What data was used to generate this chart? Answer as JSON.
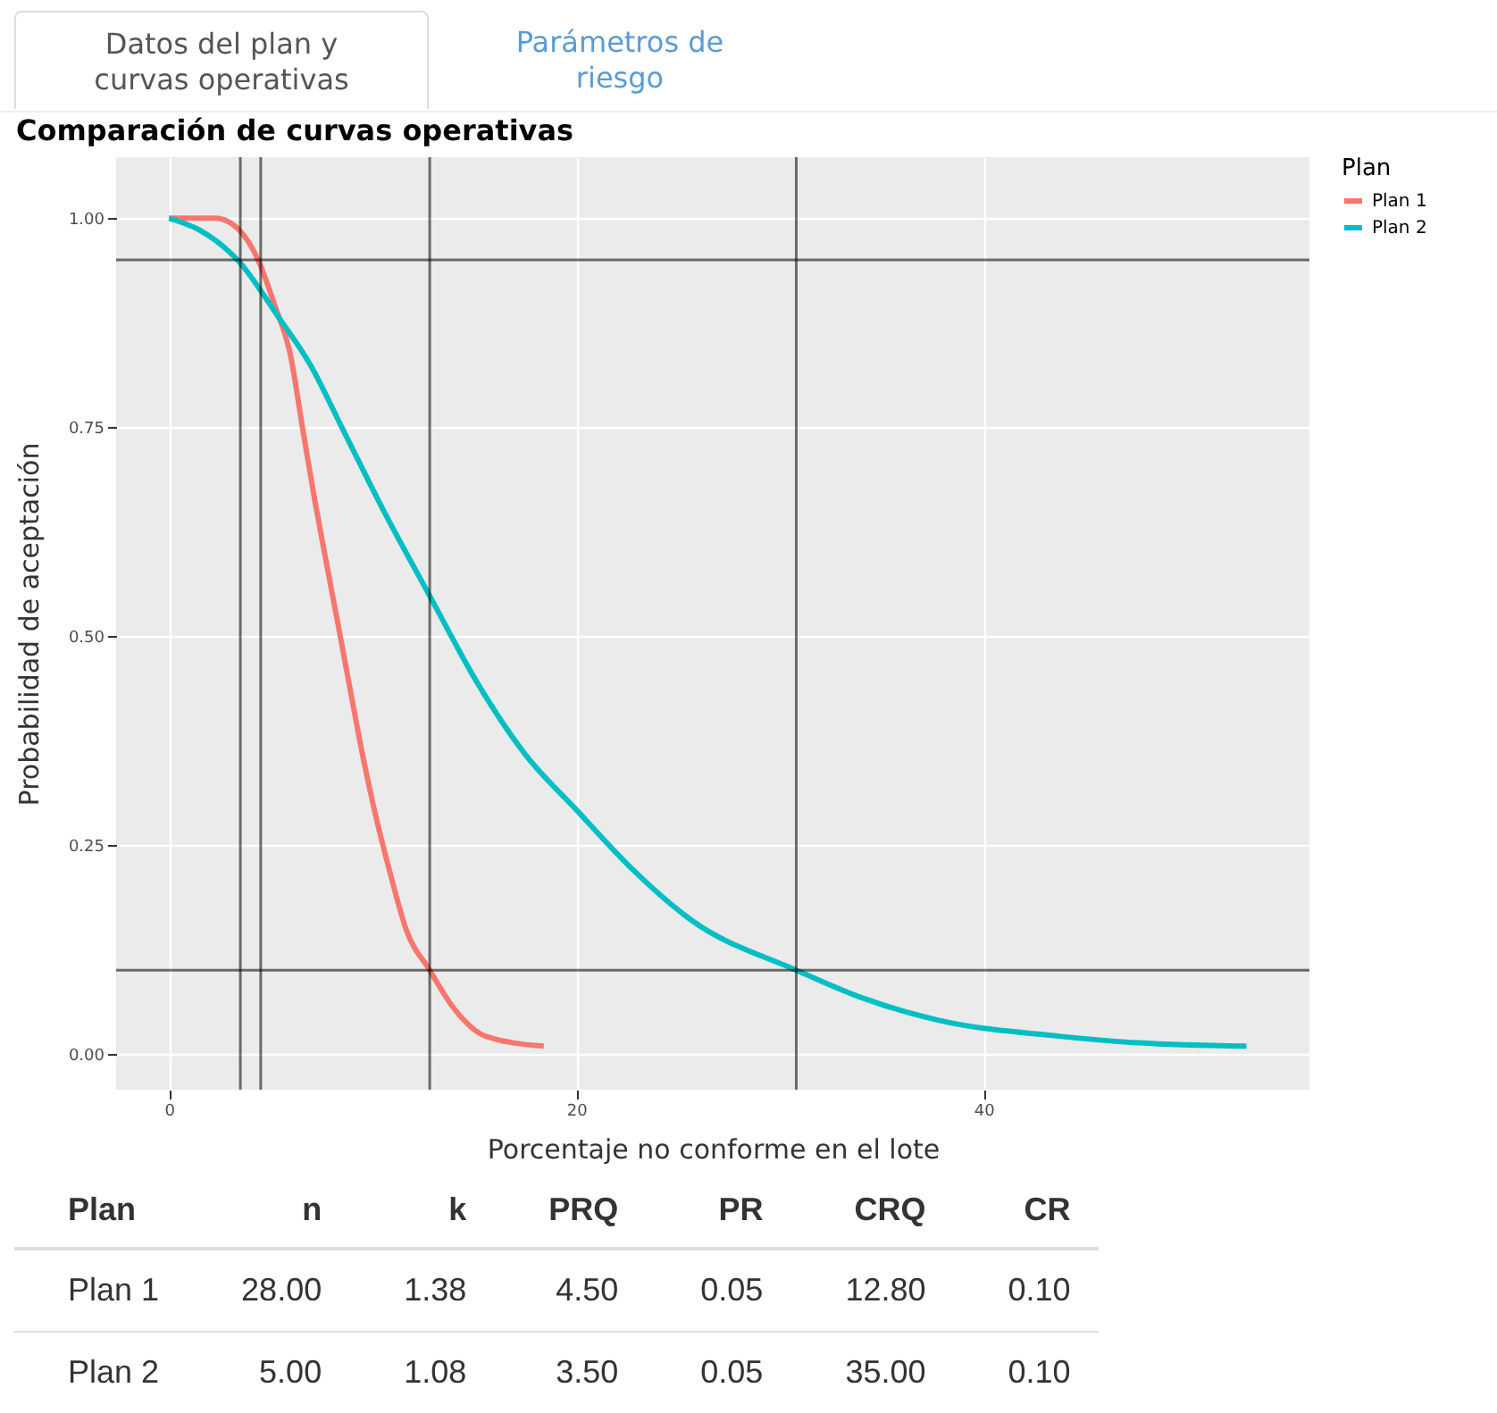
{
  "chart_data": {
    "type": "line",
    "title": "Comparación de curvas operativas",
    "xlabel": "Porcentaje no conforme en el lote",
    "ylabel": "Probabilidad de aceptación",
    "legend_title": "Plan",
    "legend": "right",
    "grid": true,
    "xlim": [
      -2.6,
      56
    ],
    "xticks": [
      0,
      20,
      40
    ],
    "ylim": [
      -0.043,
      1.073
    ],
    "yticks": [
      {
        "value": 0,
        "label": "0.00"
      },
      {
        "value": 0.25,
        "label": "0.25"
      },
      {
        "value": 0.5,
        "label": "0.50"
      },
      {
        "value": 0.75,
        "label": "0.75"
      },
      {
        "value": 1,
        "label": "1.00"
      }
    ],
    "series": [
      {
        "name": "Plan 1",
        "color": "#f8766d",
        "x": [
          0,
          2.27,
          3.44,
          4.41,
          5.2,
          5.98,
          6.56,
          7.15,
          7.73,
          8.32,
          8.91,
          9.5,
          10.08,
          10.86,
          11.64,
          12.8,
          14,
          15.55,
          18.4
        ],
        "values": [
          1,
          1,
          0.986,
          0.948,
          0.895,
          0.834,
          0.748,
          0.663,
          0.587,
          0.511,
          0.434,
          0.358,
          0.292,
          0.216,
          0.149,
          0.1,
          0.054,
          0.021,
          0.009
        ]
      },
      {
        "name": "Plan 2",
        "color": "#00bfc4",
        "x": [
          0,
          1.48,
          3.44,
          5.39,
          6.95,
          8.52,
          10.47,
          12.8,
          15.16,
          17.5,
          20,
          22.58,
          25.7,
          30.8,
          33.9,
          37.8,
          43.7,
          47.6,
          52.9
        ],
        "values": [
          1,
          0.986,
          0.948,
          0.881,
          0.824,
          0.748,
          0.653,
          0.548,
          0.443,
          0.358,
          0.292,
          0.225,
          0.159,
          0.1,
          0.068,
          0.04,
          0.021,
          0.013,
          0.009
        ]
      }
    ],
    "ref_lines": [
      {
        "axis": "x",
        "value": 3.5
      },
      {
        "axis": "x",
        "value": 4.5
      },
      {
        "axis": "x",
        "value": 12.8
      },
      {
        "axis": "x",
        "value": 30.8
      },
      {
        "axis": "y",
        "value": 0.95
      },
      {
        "axis": "y",
        "value": 0.1
      }
    ],
    "annotations": [
      "Datos del plan y curvas operativas",
      "Parámetros de riesgo",
      "Plan",
      "n",
      "k",
      "PRQ",
      "PR",
      "CRQ",
      "CR",
      "Plan 1",
      "28.00",
      "1.38",
      "4.50",
      "0.05",
      "12.80",
      "0.10",
      "Plan 2",
      "5.00",
      "1.08",
      "3.50",
      "0.05",
      "35.00",
      "0.10"
    ]
  }
}
